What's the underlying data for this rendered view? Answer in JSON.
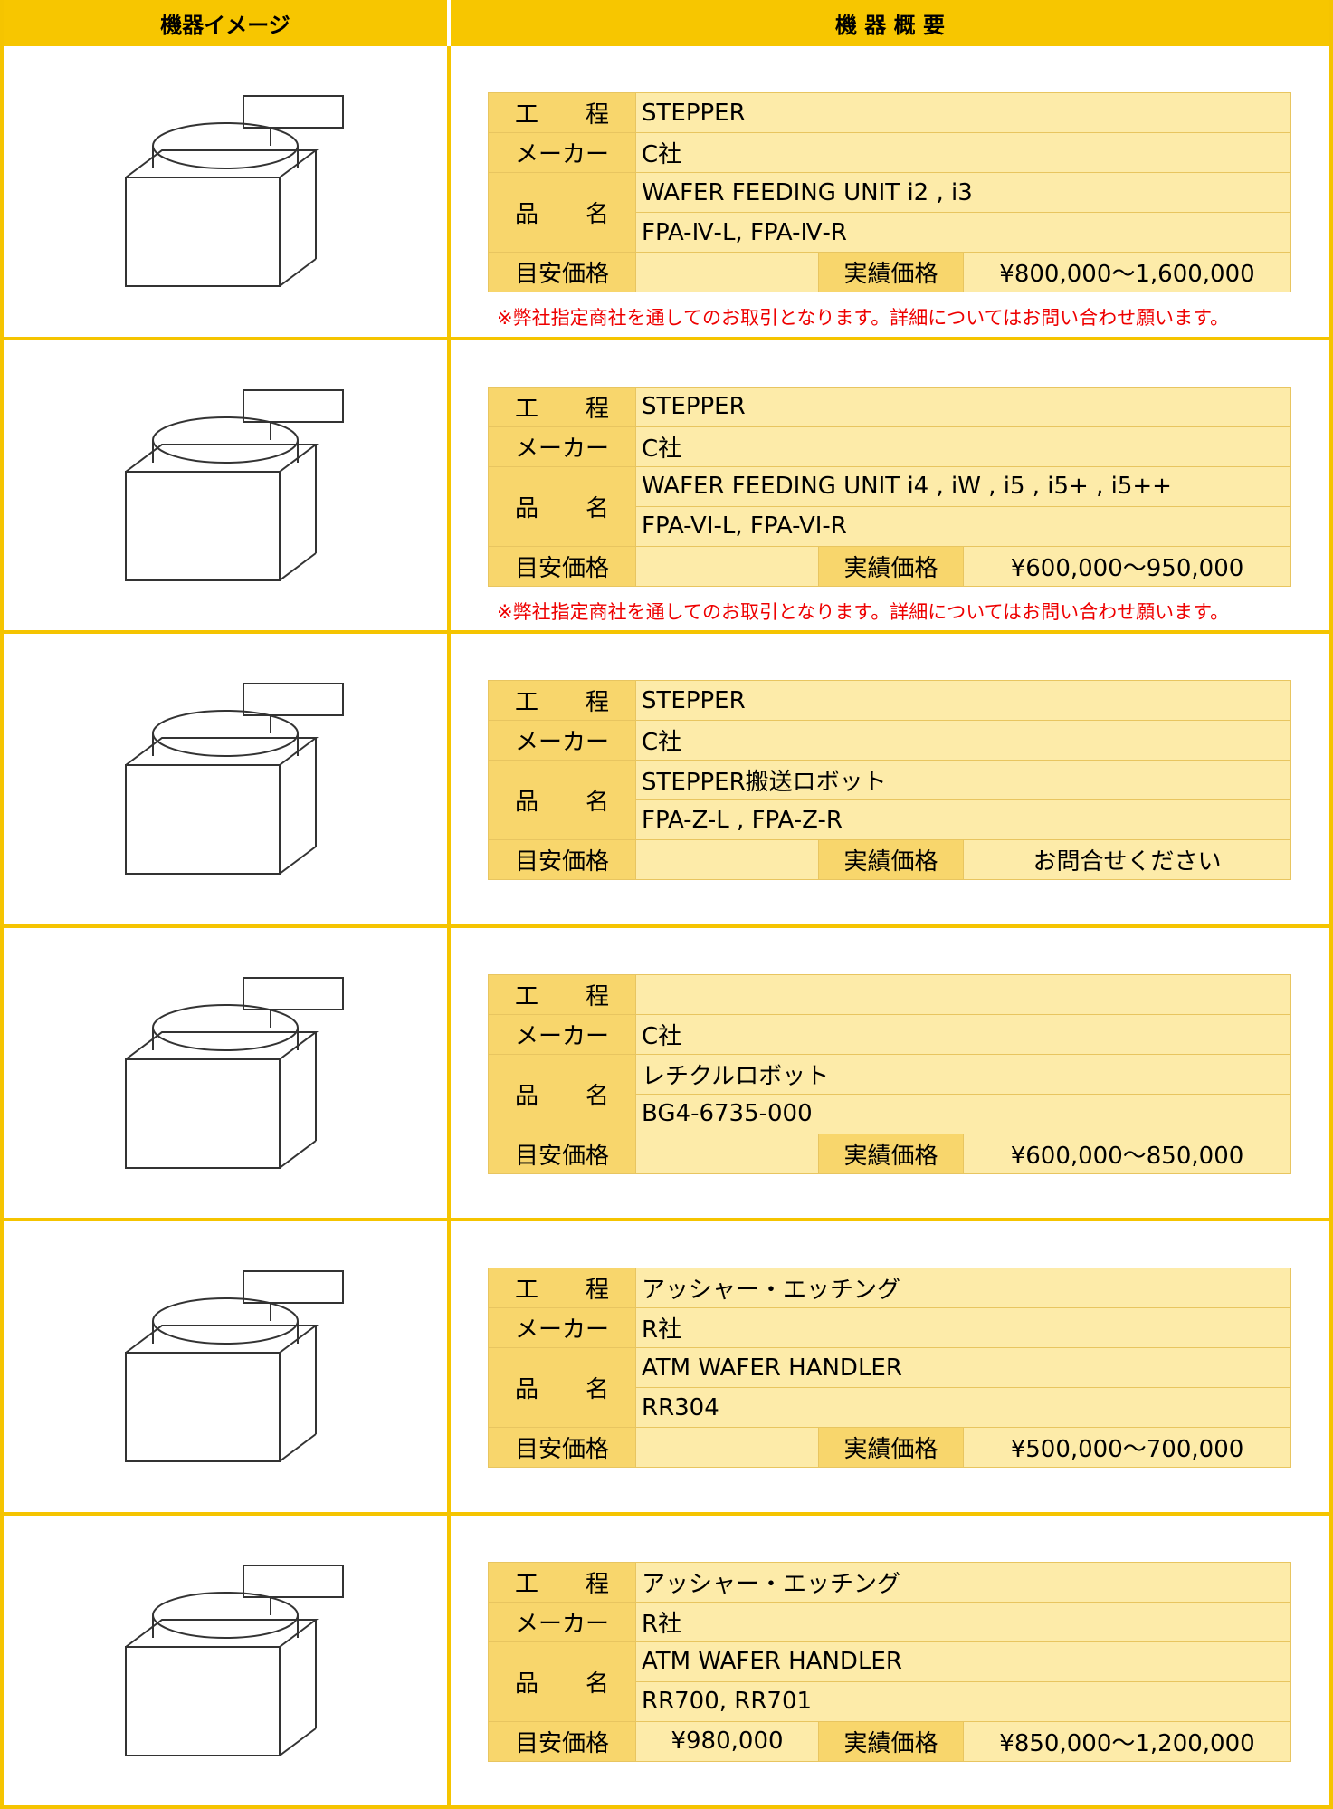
{
  "header": {
    "columns": [
      "機器イメージ",
      "機 器 概 要"
    ]
  },
  "labels": {
    "process": "工　　程",
    "maker": "メーカー",
    "name": "品　　名",
    "estimate": "目安価格",
    "actual": "実績価格"
  },
  "rows": [
    {
      "process": "STEPPER",
      "maker": "C社",
      "name": [
        "WAFER FEEDING UNIT  i2 , i3",
        "FPA-Ⅳ-L,  FPA-Ⅳ-R"
      ],
      "actual": "¥800,000～1,600,000",
      "note": "※弊社指定商社を通してのお取引となります。詳細についてはお問い合わせ願います。"
    },
    {
      "process": "STEPPER",
      "maker": "C社",
      "name": [
        "WAFER FEEDING UNIT   i4 , iW , i5 , i5+ , i5++",
        "FPA-VI-L,  FPA-VI-R"
      ],
      "actual": "¥600,000～950,000",
      "note": "※弊社指定商社を通してのお取引となります。詳細についてはお問い合わせ願います。"
    },
    {
      "process": "STEPPER",
      "maker": "C社",
      "name": [
        "STEPPER搬送ロボット",
        "FPA-Z-L ,  FPA-Z-R"
      ],
      "actual": "お問合せください"
    },
    {
      "maker": "C社",
      "name": [
        "レチクルロボット",
        "BG4-6735-000"
      ],
      "actual": "¥600,000～850,000"
    },
    {
      "process": "アッシャー・エッチング",
      "maker": "R社",
      "name": [
        "ATM WAFER HANDLER",
        "RR304"
      ],
      "actual": "¥500,000～700,000"
    },
    {
      "process": "アッシャー・エッチング",
      "maker": "R社",
      "name": [
        "ATM WAFER HANDLER",
        "RR700, RR701"
      ],
      "estimate": "¥980,000",
      "actual": "¥850,000～1,200,000"
    }
  ]
}
